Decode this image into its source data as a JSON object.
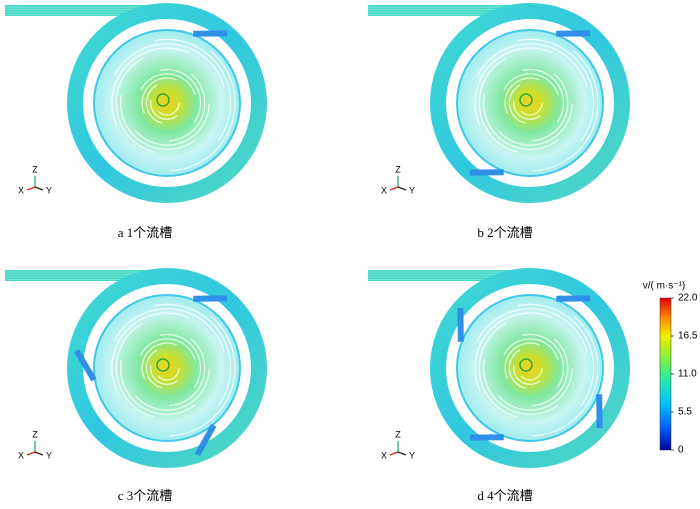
{
  "panels": [
    {
      "caption": "a 1个流槽"
    },
    {
      "caption": "b 2个流槽"
    },
    {
      "caption": "c 3个流槽"
    },
    {
      "caption": "d 4个流槽"
    }
  ],
  "axis_labels": {
    "z": "Z",
    "x": "X",
    "y": "Y"
  },
  "colorbar": {
    "title": "v/( m·s⁻¹)",
    "range": [
      0,
      22
    ],
    "ticks": [
      {
        "value": 22,
        "label": "22.0"
      },
      {
        "value": 16.5,
        "label": "16.5"
      },
      {
        "value": 11,
        "label": "11.0"
      },
      {
        "value": 5.5,
        "label": "5.5"
      },
      0
    ]
  }
}
